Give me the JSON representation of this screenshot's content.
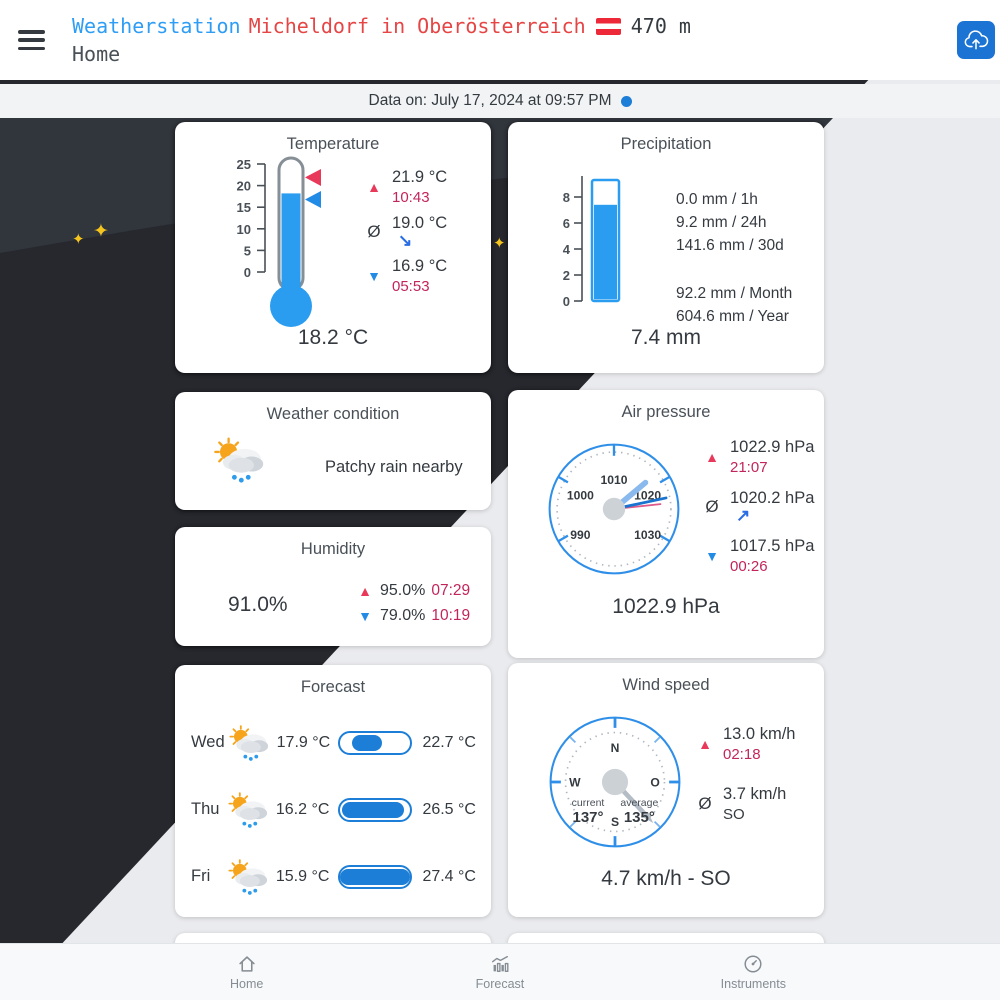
{
  "header": {
    "station": "Weatherstation",
    "location": "Micheldorf in Oberösterreich",
    "flag": "austria-flag",
    "altitude": "470 m",
    "page": "Home"
  },
  "status_bar": {
    "text": "Data on: July 17, 2024 at 09:57 PM"
  },
  "cards": {
    "temperature": {
      "title": "Temperature",
      "scale": [
        "25",
        "20",
        "15",
        "10",
        "5",
        "0"
      ],
      "max": {
        "value": "21.9 °C",
        "time": "10:43"
      },
      "avg": {
        "value": "19.0 °C",
        "trend": "↘"
      },
      "min": {
        "value": "16.9 °C",
        "time": "05:53"
      },
      "current": "18.2 °C"
    },
    "precipitation": {
      "title": "Precipitation",
      "scale": [
        "8",
        "6",
        "4",
        "2",
        "0"
      ],
      "lines_recent": [
        "0.0 mm / 1h",
        "9.2 mm / 24h",
        "141.6 mm / 30d"
      ],
      "lines_period": [
        "92.2 mm / Month",
        "604.6 mm / Year"
      ],
      "current": "7.4 mm"
    },
    "condition": {
      "title": "Weather condition",
      "text": "Patchy rain nearby"
    },
    "pressure": {
      "title": "Air pressure",
      "dial": [
        "990",
        "1000",
        "1010",
        "1020",
        "1030"
      ],
      "max": {
        "value": "1022.9 hPa",
        "time": "21:07"
      },
      "avg": {
        "value": "1020.2 hPa",
        "trend": "↗"
      },
      "min": {
        "value": "1017.5 hPa",
        "time": "00:26"
      },
      "current": "1022.9 hPa"
    },
    "humidity": {
      "title": "Humidity",
      "current": "91.0%",
      "max": {
        "value": "95.0%",
        "time": "07:29"
      },
      "min": {
        "value": "79.0%",
        "time": "10:19"
      }
    },
    "forecast": {
      "title": "Forecast",
      "days": [
        {
          "day": "Wed",
          "min": "17.9 °C",
          "max": "22.7 °C",
          "min_c": 17.9,
          "max_c": 22.7
        },
        {
          "day": "Thu",
          "min": "16.2 °C",
          "max": "26.5 °C",
          "min_c": 16.2,
          "max_c": 26.5
        },
        {
          "day": "Fri",
          "min": "15.9 °C",
          "max": "27.4 °C",
          "min_c": 15.9,
          "max_c": 27.4
        }
      ]
    },
    "wind": {
      "title": "Wind speed",
      "compass": {
        "n": "N",
        "o": "O",
        "s": "S",
        "w": "W",
        "current_label": "current",
        "current_value": "137°",
        "average_label": "average",
        "average_value": "135°"
      },
      "max": {
        "value": "13.0 km/h",
        "time": "02:18"
      },
      "avg": {
        "value": "3.7 km/h",
        "direction": "SO"
      },
      "current": "4.7 km/h - SO"
    }
  },
  "nav": {
    "items": [
      {
        "label": "Home"
      },
      {
        "label": "Forecast"
      },
      {
        "label": "Instruments"
      }
    ]
  }
}
